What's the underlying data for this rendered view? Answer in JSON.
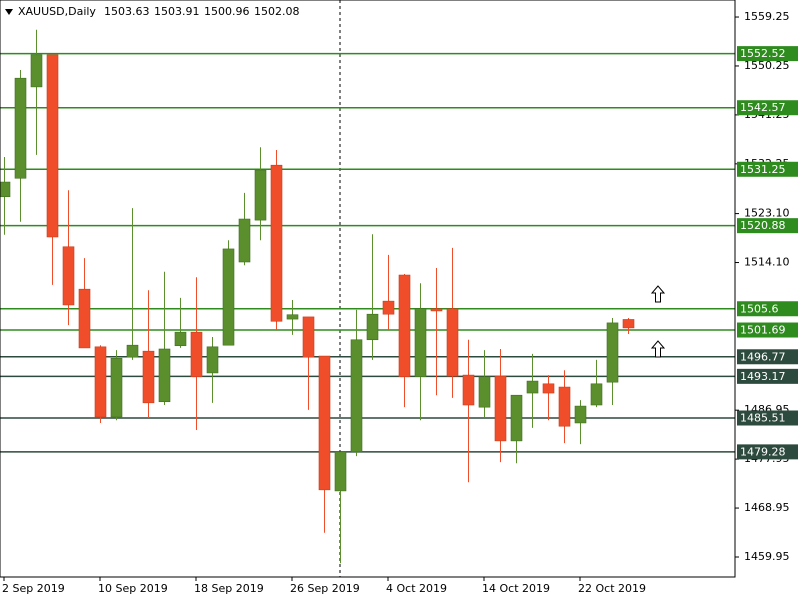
{
  "chart_data": {
    "type": "candlestick",
    "title": "XAUUSD,Daily",
    "categories": [
      "2 Sep 2019",
      null,
      null,
      null,
      null,
      null,
      "10 Sep 2019",
      null,
      null,
      null,
      null,
      null,
      "18 Sep 2019",
      null,
      null,
      null,
      null,
      null,
      "26 Sep 2019",
      null,
      null,
      null,
      null,
      null,
      "4 Oct 2019",
      null,
      null,
      null,
      null,
      null,
      "14 Oct 2019",
      null,
      null,
      null,
      null,
      null,
      "22 Oct 2019",
      null,
      null,
      null
    ],
    "open": [
      1526.2,
      1529.6,
      1546.4,
      1552.3,
      1517.0,
      1509.2,
      1498.6,
      1485.7,
      1496.7,
      1497.8,
      1488.5,
      1498.8,
      1501.3,
      1493.8,
      1498.9,
      1514.2,
      1521.9,
      1532.0,
      1503.7,
      1504.1,
      1496.9,
      1472.1,
      1479.3,
      1499.9,
      1507.0,
      1511.8,
      1493.1,
      1505.6,
      1505.6,
      1493.4,
      1487.5,
      1493.2,
      1481.3,
      1490.1,
      1491.8,
      1491.2,
      1484.6,
      1487.9,
      1492.1,
      1503.63
    ],
    "high": [
      1533.5,
      1549.5,
      1556.9,
      1552.3,
      1527.4,
      1514.9,
      1498.9,
      1498.0,
      1524.1,
      1509.0,
      1512.4,
      1507.6,
      1511.4,
      1500.4,
      1518.2,
      1526.9,
      1535.3,
      1534.8,
      1507.2,
      1504.1,
      1496.9,
      1479.3,
      1505.4,
      1519.3,
      1515.5,
      1512.0,
      1510.3,
      1513.1,
      1516.8,
      1499.9,
      1498.0,
      1498.2,
      1489.7,
      1497.3,
      1493.4,
      1494.3,
      1488.8,
      1496.2,
      1503.9,
      1503.91
    ],
    "low": [
      1519.2,
      1521.6,
      1533.9,
      1510.0,
      1502.6,
      1498.4,
      1484.6,
      1485.1,
      1496.2,
      1485.5,
      1487.9,
      1498.4,
      1483.3,
      1488.3,
      1498.9,
      1513.6,
      1518.2,
      1501.7,
      1500.8,
      1487.0,
      1464.4,
      1458.8,
      1478.5,
      1496.2,
      1501.7,
      1487.5,
      1485.1,
      1489.7,
      1489.2,
      1473.7,
      1485.7,
      1477.4,
      1477.2,
      1483.7,
      1485.1,
      1480.9,
      1480.7,
      1487.5,
      1487.9,
      1500.96
    ],
    "close": [
      1528.9,
      1548.0,
      1552.3,
      1518.8,
      1506.3,
      1498.4,
      1485.7,
      1496.5,
      1498.9,
      1488.3,
      1498.2,
      1501.3,
      1493.1,
      1498.6,
      1516.6,
      1522.1,
      1531.1,
      1503.3,
      1504.5,
      1496.7,
      1472.3,
      1479.3,
      1499.9,
      1504.6,
      1504.6,
      1493.1,
      1505.6,
      1505.2,
      1493.2,
      1487.9,
      1493.1,
      1481.3,
      1489.7,
      1492.3,
      1490.1,
      1484.0,
      1487.7,
      1491.8,
      1503.0,
      1502.08
    ],
    "up_color": "#5b8f2d",
    "down_color": "#f04e2a",
    "ylim": [
      1456.27,
      1562.38
    ],
    "yticks": [
      1559.25,
      1550.25,
      1541.25,
      1532.25,
      {
        "value": 1523.1,
        "label": "1523.10"
      },
      {
        "value": 1514.1,
        "label": "1514.10"
      },
      1486.95,
      1477.95,
      1468.95,
      1459.95
    ],
    "levels": [
      {
        "value": 1552.52,
        "color": "#2e8b1e"
      },
      {
        "value": 1542.57,
        "color": "#2e8b1e"
      },
      {
        "value": 1531.25,
        "color": "#2e8b1e"
      },
      {
        "value": 1520.88,
        "color": "#2e8b1e"
      },
      {
        "value": 1505.6,
        "color": "#2e8b1e"
      },
      {
        "value": 1501.69,
        "color": "#2e8b1e"
      },
      {
        "value": 1496.77,
        "color": "#2d4a3e"
      },
      {
        "value": 1493.17,
        "color": "#2d4a3e"
      },
      {
        "value": 1485.51,
        "color": "#2d4a3e"
      },
      {
        "value": 1479.28,
        "color": "#2d4a3e"
      }
    ]
  }
}
